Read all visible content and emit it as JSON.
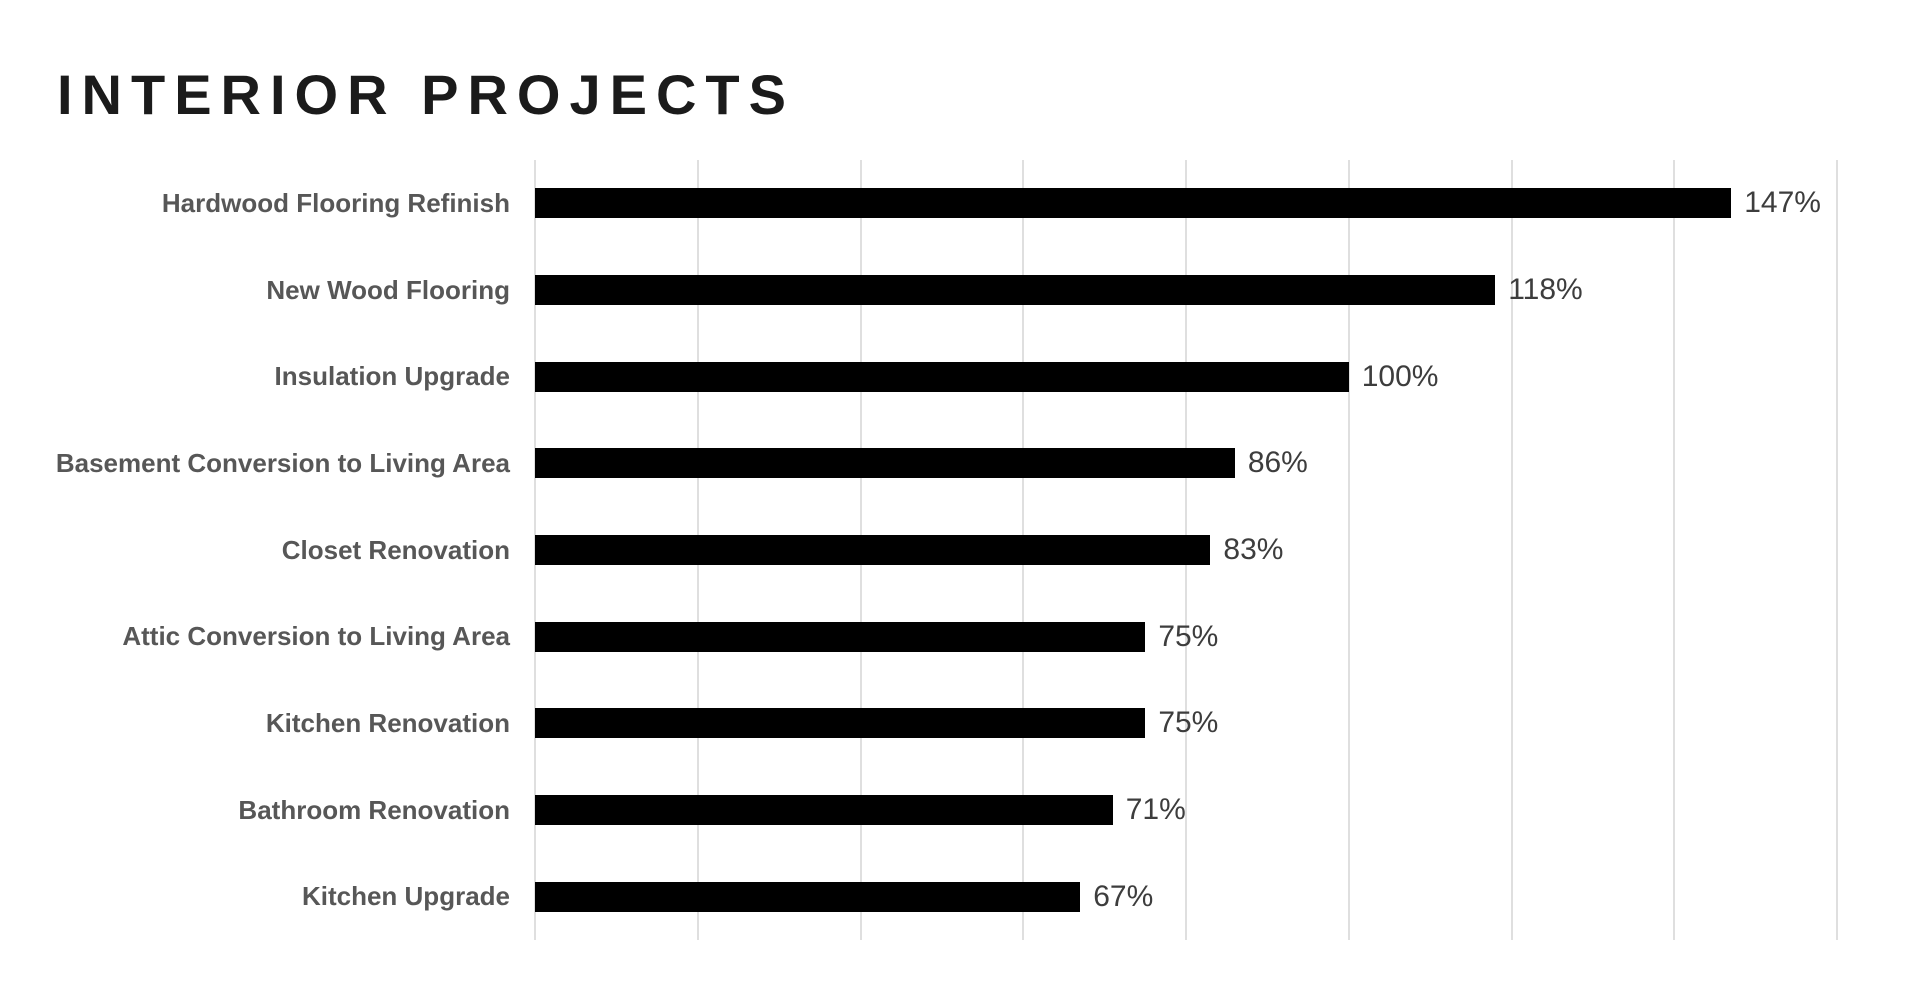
{
  "page": {
    "background_color": "#ffffff"
  },
  "header": {
    "title": "INTERIOR PROJECTS",
    "title_color": "#1b1b1b"
  },
  "chart_data": {
    "type": "bar",
    "orientation": "horizontal",
    "title": "INTERIOR PROJECTS",
    "xlabel": "",
    "ylabel": "",
    "categories": [
      "Hardwood Flooring Refinish",
      "New Wood Flooring",
      "Insulation Upgrade",
      "Basement Conversion to Living Area",
      "Closet Renovation",
      "Attic Conversion to Living Area",
      "Kitchen Renovation",
      "Bathroom Renovation",
      "Kitchen Upgrade"
    ],
    "values": [
      147,
      118,
      100,
      86,
      83,
      75,
      75,
      71,
      67
    ],
    "value_labels": [
      "147%",
      "118%",
      "100%",
      "86%",
      "83%",
      "75%",
      "75%",
      "71%",
      "67%"
    ],
    "unit": "%",
    "xlim": [
      0,
      160
    ],
    "gridline_step": 20,
    "grid": "vertical-only",
    "legend": "none",
    "axis_tick_labels": "none",
    "bar_color": "#000000",
    "category_label_color": "#575757",
    "value_label_color": "#3d3d3d",
    "gridline_color": "#dfdfdf"
  }
}
